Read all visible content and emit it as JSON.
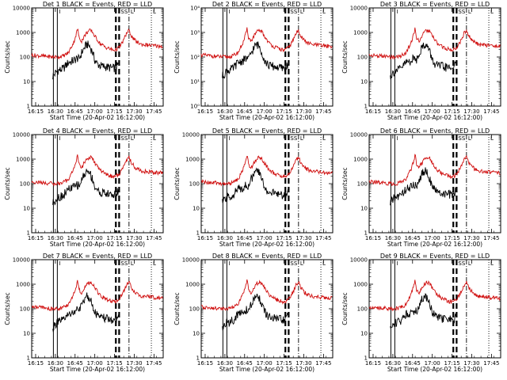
{
  "chart_data": {
    "type": "line",
    "layout": "3x3 grid of panels",
    "title_template": "Det {n}  BLACK = Events, RED = LLD",
    "title_black_word": "BLACK",
    "title_red_word": "RED",
    "xlabel": "Start Time (20-Apr-02 16:12:00)",
    "ylabel": "Counts/sec",
    "x_ticks_min": [
      3,
      18,
      33,
      48,
      63,
      78,
      93
    ],
    "x_tick_labels": [
      "16:15",
      "16:30",
      "16:45",
      "17:00",
      "17:15",
      "17:30",
      "17:45"
    ],
    "xlim_min": [
      0,
      100
    ],
    "yscale": "log",
    "ylim": [
      1,
      10000
    ],
    "y_tick_values": [
      1,
      10,
      100,
      1000,
      10000
    ],
    "y_tick_labels": [
      "1",
      "10",
      "100",
      "1000",
      "10000"
    ],
    "y_tick_labels_det2": [
      "10⁰",
      "10¹",
      "10²",
      "10³",
      "10⁴"
    ],
    "markers": [
      {
        "t": 16.5,
        "style": "solid",
        "label": ""
      },
      {
        "t": 19.5,
        "style": "solid",
        "label": "I"
      },
      {
        "t": 64,
        "style": "thick-dashed",
        "label": ""
      },
      {
        "t": 66.5,
        "style": "thick-dashed",
        "label": "SS"
      },
      {
        "t": 74,
        "style": "dash-dot",
        "label": "L"
      },
      {
        "t": 91,
        "style": "dotted",
        "label": "L"
      }
    ],
    "colors": {
      "events": "#000000",
      "lld": "#d01010"
    },
    "series": [
      {
        "name": "Events (black)",
        "color": "#000000",
        "x": [
          16,
          18,
          20,
          22,
          24,
          26,
          28,
          30,
          32,
          34,
          35,
          36,
          38,
          40,
          42,
          44,
          46,
          48,
          50,
          52,
          54,
          56,
          58,
          60,
          62,
          64,
          66
        ],
        "y": [
          16,
          22,
          28,
          30,
          33,
          45,
          60,
          65,
          72,
          85,
          90,
          78,
          150,
          230,
          330,
          280,
          170,
          75,
          52,
          44,
          42,
          40,
          38,
          36,
          35,
          36,
          50
        ]
      },
      {
        "name": "LLD (red)",
        "color": "#d01010",
        "x": [
          0,
          8,
          16,
          20,
          24,
          28,
          30,
          32,
          34,
          35,
          36,
          38,
          40,
          42,
          44,
          46,
          48,
          50,
          52,
          54,
          56,
          58,
          60,
          62,
          64,
          66,
          68,
          70,
          72,
          74,
          76,
          78,
          80,
          84,
          88,
          92,
          96,
          100
        ],
        "y": [
          120,
          110,
          100,
          100,
          110,
          150,
          250,
          400,
          900,
          1500,
          600,
          450,
          700,
          1000,
          1200,
          1100,
          700,
          500,
          350,
          300,
          250,
          230,
          210,
          190,
          200,
          230,
          320,
          500,
          900,
          1200,
          700,
          500,
          400,
          320,
          310,
          290,
          280,
          270
        ]
      }
    ],
    "panels": [
      {
        "det": "1",
        "y_label_style": "plain"
      },
      {
        "det": "2",
        "y_label_style": "power"
      },
      {
        "det": "3",
        "y_label_style": "plain"
      },
      {
        "det": "4",
        "y_label_style": "plain"
      },
      {
        "det": "5",
        "y_label_style": "plain"
      },
      {
        "det": "6",
        "y_label_style": "plain"
      },
      {
        "det": "7",
        "y_label_style": "plain"
      },
      {
        "det": "8",
        "y_label_style": "plain"
      },
      {
        "det": "9",
        "y_label_style": "plain"
      }
    ]
  }
}
